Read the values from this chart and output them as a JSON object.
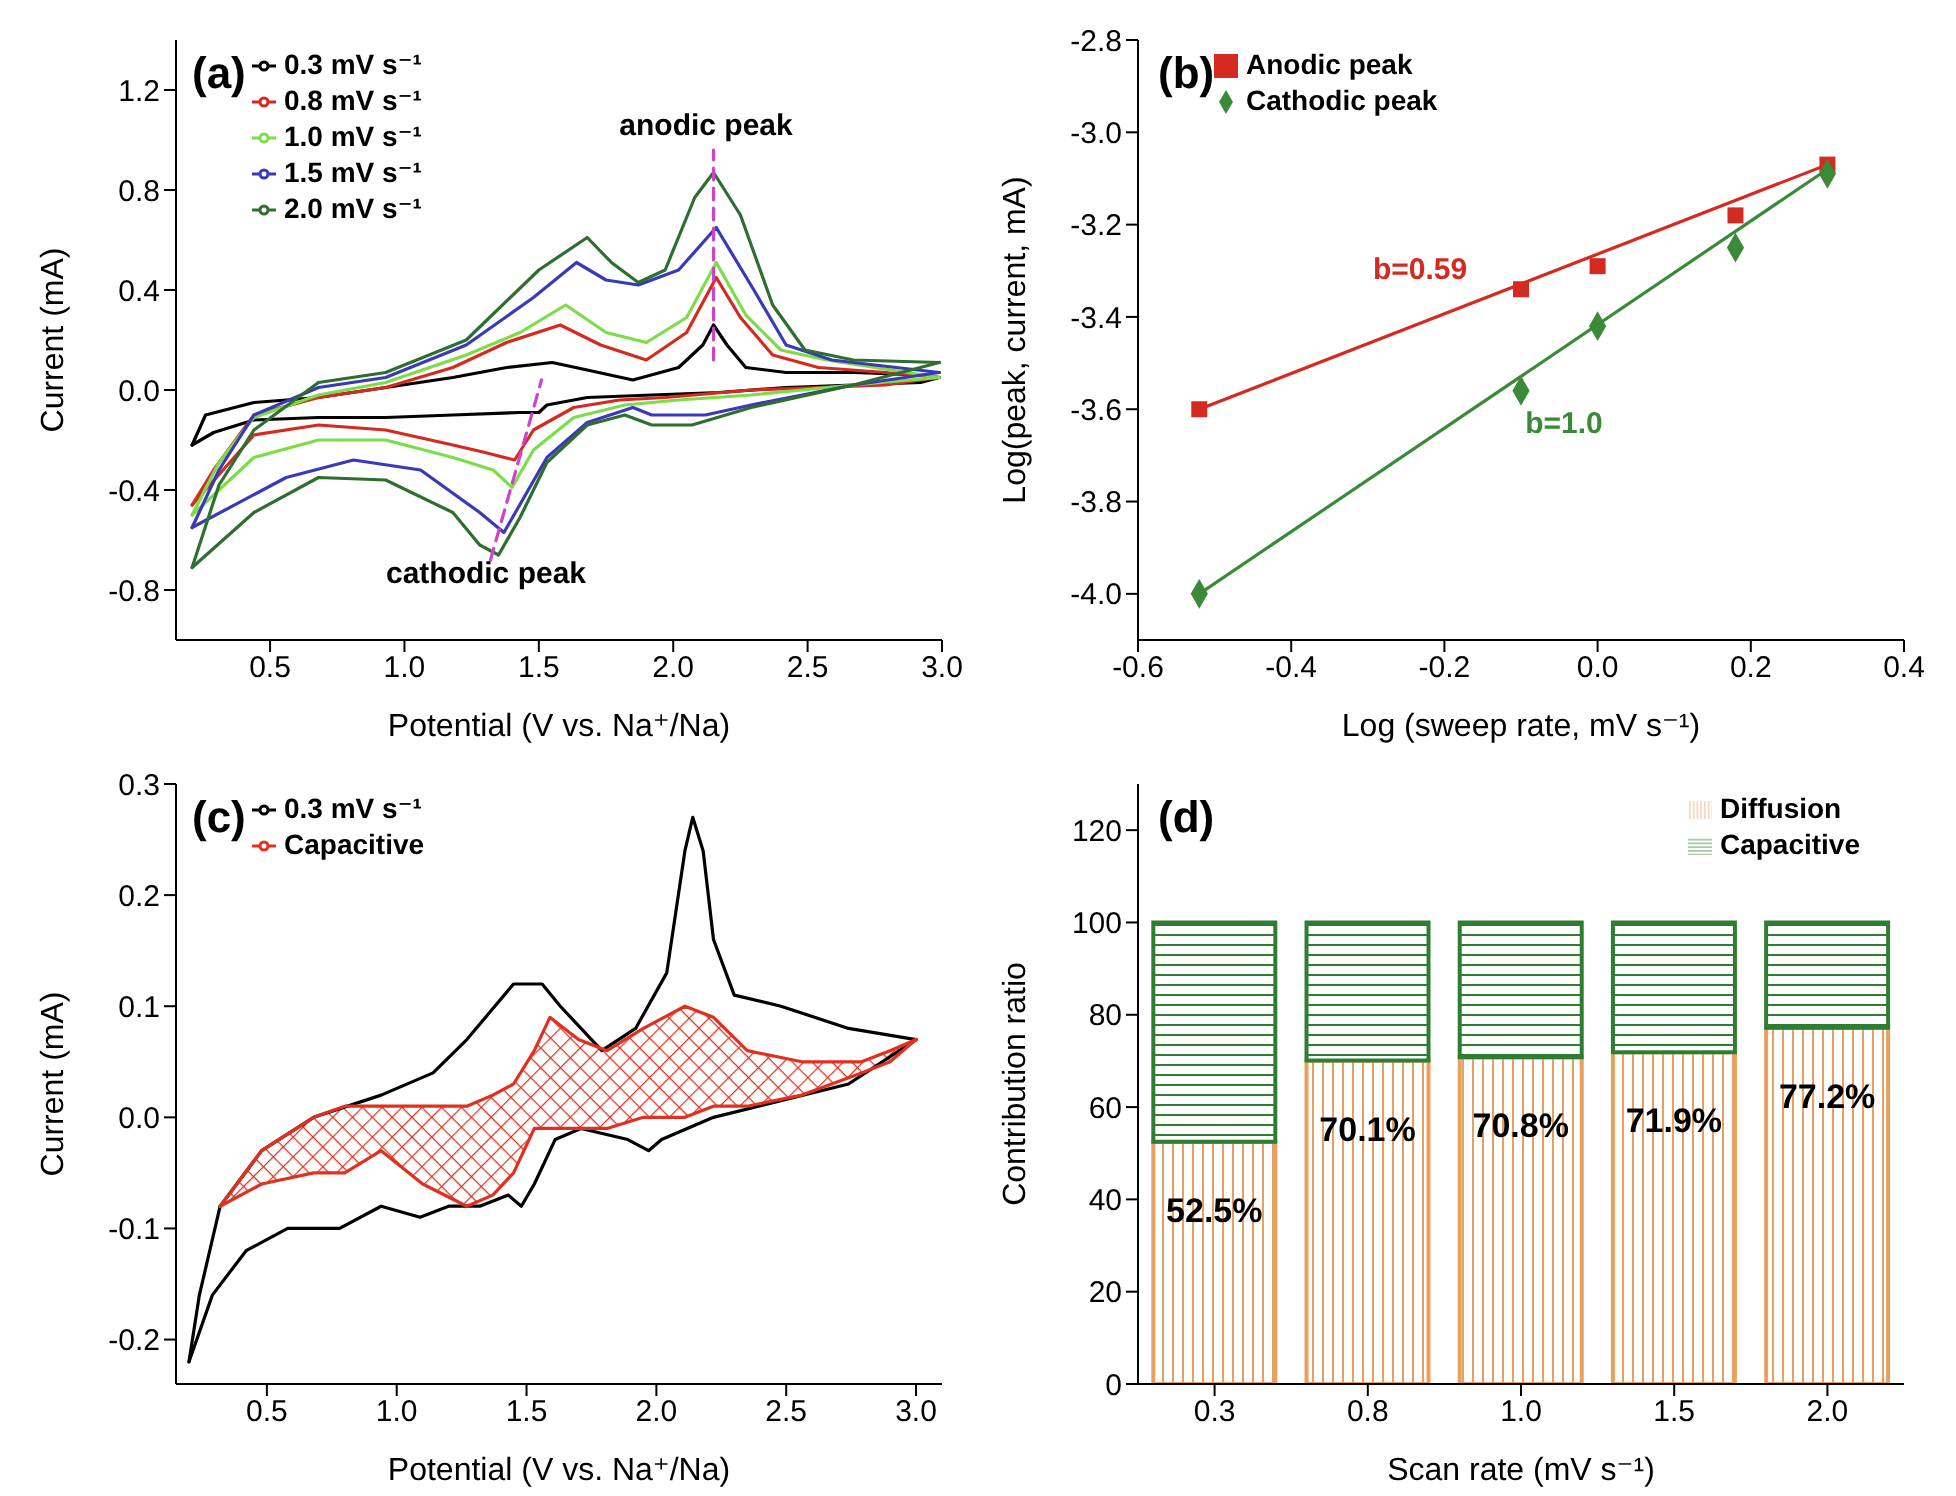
{
  "chart_data": [
    {
      "type": "line",
      "xlabel": "Potential (V vs. Na⁺/Na)",
      "ylabel": "Current (mA)",
      "xlim": [
        0.15,
        3.0
      ],
      "ylim": [
        -1.0,
        1.4
      ],
      "xticks": [
        0.5,
        {
          "value": 1,
          "label": "1.0"
        },
        1.5,
        {
          "value": 2,
          "label": "2.0"
        },
        2.5,
        {
          "value": 3,
          "label": "3.0"
        }
      ],
      "yticks": [
        -0.8,
        -0.4,
        {
          "value": 0,
          "label": "0.0"
        },
        0.4,
        0.8,
        1.2
      ],
      "legend": "top left",
      "annotations": [
        "(a)",
        "anodic peak",
        "cathodic peak"
      ],
      "series": [
        {
          "name": "0.3 mV s⁻¹",
          "color": "#000000",
          "x": [
            0.21,
            0.26,
            0.44,
            0.68,
            0.93,
            1.18,
            1.38,
            1.55,
            1.68,
            1.85,
            2.02,
            2.11,
            2.15,
            2.2,
            2.27,
            2.42,
            2.67,
            2.92,
            2.99
          ],
          "values": [
            -0.22,
            -0.1,
            -0.05,
            -0.03,
            0.01,
            0.05,
            0.09,
            0.11,
            0.08,
            0.04,
            0.09,
            0.18,
            0.26,
            0.18,
            0.09,
            0.07,
            0.07,
            0.06,
            0.05
          ]
        },
        {
          "color": "#000000",
          "x": [
            0.21,
            0.29,
            0.44,
            0.68,
            0.93,
            1.18,
            1.43,
            1.5,
            1.53,
            1.68,
            1.92,
            2.17,
            2.42,
            2.67,
            2.92,
            2.99
          ],
          "values": [
            -0.22,
            -0.17,
            -0.12,
            -0.11,
            -0.11,
            -0.1,
            -0.09,
            -0.09,
            -0.06,
            -0.03,
            -0.02,
            -0.01,
            0.01,
            0.02,
            0.03,
            0.05
          ]
        },
        {
          "name": "0.8 mV s⁻¹",
          "color": "#d42a20",
          "x": [
            0.21,
            0.29,
            0.44,
            0.68,
            0.93,
            1.18,
            1.38,
            1.58,
            1.73,
            1.9,
            2.05,
            2.16,
            2.25,
            2.37,
            2.54,
            2.79,
            2.99
          ],
          "values": [
            -0.46,
            -0.32,
            -0.1,
            -0.03,
            0.01,
            0.09,
            0.19,
            0.26,
            0.18,
            0.12,
            0.23,
            0.45,
            0.29,
            0.14,
            0.09,
            0.07,
            0.05
          ]
        },
        {
          "color": "#d42a20",
          "x": [
            0.21,
            0.44,
            0.68,
            0.93,
            1.18,
            1.3,
            1.41,
            1.48,
            1.63,
            1.8,
            1.97,
            2.29,
            2.54,
            2.79,
            2.99
          ],
          "values": [
            -0.46,
            -0.18,
            -0.14,
            -0.16,
            -0.22,
            -0.25,
            -0.28,
            -0.16,
            -0.07,
            -0.04,
            -0.03,
            0.0,
            0.01,
            0.02,
            0.05
          ]
        },
        {
          "name": "1.0 mV s⁻¹",
          "color": "#7ddc4a",
          "x": [
            0.21,
            0.31,
            0.44,
            0.68,
            0.93,
            1.23,
            1.43,
            1.6,
            1.75,
            1.9,
            2.05,
            2.16,
            2.27,
            2.4,
            2.57,
            2.99
          ],
          "values": [
            -0.5,
            -0.29,
            -0.11,
            -0.02,
            0.03,
            0.14,
            0.23,
            0.34,
            0.23,
            0.19,
            0.29,
            0.51,
            0.3,
            0.16,
            0.12,
            0.05
          ]
        },
        {
          "color": "#7ddc4a",
          "x": [
            0.21,
            0.44,
            0.68,
            0.93,
            1.18,
            1.33,
            1.4,
            1.48,
            1.63,
            1.82,
            2.02,
            2.29,
            2.67,
            2.99
          ],
          "values": [
            -0.5,
            -0.27,
            -0.2,
            -0.2,
            -0.27,
            -0.32,
            -0.39,
            -0.24,
            -0.11,
            -0.06,
            -0.04,
            -0.02,
            0.02,
            0.05
          ]
        },
        {
          "name": "1.5 mV s⁻¹",
          "color": "#3a3ab8",
          "x": [
            0.21,
            0.31,
            0.44,
            0.68,
            0.93,
            1.23,
            1.48,
            1.64,
            1.75,
            1.87,
            2.02,
            2.16,
            2.3,
            2.42,
            2.59,
            2.99
          ],
          "values": [
            -0.55,
            -0.32,
            -0.1,
            0.01,
            0.05,
            0.18,
            0.37,
            0.51,
            0.44,
            0.42,
            0.48,
            0.65,
            0.4,
            0.18,
            0.12,
            0.07
          ]
        },
        {
          "color": "#3a3ab8",
          "x": [
            0.21,
            0.56,
            0.81,
            1.06,
            1.28,
            1.37,
            1.53,
            1.68,
            1.85,
            1.92,
            2.12,
            2.29,
            2.67,
            2.99
          ],
          "values": [
            -0.55,
            -0.35,
            -0.28,
            -0.32,
            -0.49,
            -0.57,
            -0.27,
            -0.13,
            -0.07,
            -0.1,
            -0.1,
            -0.06,
            0.02,
            0.07
          ]
        },
        {
          "name": "2.0 mV s⁻¹",
          "color": "#2e6e2e",
          "x": [
            0.21,
            0.31,
            0.44,
            0.68,
            0.93,
            1.23,
            1.5,
            1.68,
            1.77,
            1.87,
            1.97,
            2.08,
            2.15,
            2.25,
            2.37,
            2.49,
            2.67,
            2.99
          ],
          "values": [
            -0.71,
            -0.38,
            -0.16,
            0.03,
            0.07,
            0.2,
            0.48,
            0.61,
            0.51,
            0.43,
            0.48,
            0.77,
            0.87,
            0.7,
            0.34,
            0.16,
            0.12,
            0.11
          ]
        },
        {
          "color": "#2e6e2e",
          "x": [
            0.21,
            0.44,
            0.68,
            0.93,
            1.18,
            1.28,
            1.35,
            1.43,
            1.53,
            1.68,
            1.82,
            1.92,
            2.07,
            2.29,
            2.67,
            2.99
          ],
          "values": [
            -0.71,
            -0.49,
            -0.35,
            -0.36,
            -0.49,
            -0.62,
            -0.66,
            -0.51,
            -0.29,
            -0.14,
            -0.1,
            -0.14,
            -0.14,
            -0.07,
            0.02,
            0.11
          ]
        },
        {
          "color": "#cc44cc",
          "line_style": "dashed",
          "x": [
            2.15,
            2.15
          ],
          "values": [
            0.12,
            0.96
          ]
        },
        {
          "color": "#cc44cc",
          "line_style": "dashed",
          "x": [
            1.32,
            1.51
          ],
          "values": [
            -0.68,
            0.04
          ]
        }
      ]
    },
    {
      "type": "scatter",
      "xlabel": "Log (sweep rate, mV s⁻¹)",
      "ylabel": "Log(peak, current, mA)",
      "xlim": [
        -0.6,
        0.4
      ],
      "ylim": [
        -4.1,
        -2.8
      ],
      "xticks": [
        -0.6,
        -0.4,
        -0.2,
        {
          "value": 0,
          "label": "0.0"
        },
        0.2,
        0.4
      ],
      "yticks": [
        -2.8,
        {
          "value": -3,
          "label": "-3.0"
        },
        -3.2,
        -3.4,
        -3.6,
        -3.8,
        {
          "value": -4,
          "label": "-4.0"
        }
      ],
      "legend": "top left",
      "annotations": [
        "(b)",
        "b=0.59",
        "b=1.0"
      ],
      "series": [
        {
          "name": "Anodic peak",
          "color": "#d42a20",
          "marker": "square",
          "x": [
            -0.52,
            -0.1,
            0,
            0.18,
            0.3
          ],
          "values": [
            -3.6,
            -3.34,
            -3.29,
            -3.18,
            -3.07
          ]
        },
        {
          "name": "Cathodic peak",
          "color": "#3a8a3a",
          "marker": "diamond",
          "x": [
            -0.52,
            -0.1,
            0,
            0.18,
            0.3
          ],
          "values": [
            -4.0,
            -3.56,
            -3.42,
            -3.25,
            -3.09
          ]
        },
        {
          "type": "line",
          "color": "#d42a20",
          "x": [
            -0.52,
            0.3
          ],
          "values": [
            -3.6,
            -3.07
          ]
        },
        {
          "type": "line",
          "color": "#3a8a3a",
          "x": [
            -0.52,
            0.3
          ],
          "values": [
            -4.0,
            -3.08
          ]
        }
      ]
    },
    {
      "type": "line",
      "xlabel": "Potential (V vs. Na⁺/Na)",
      "ylabel": "Current (mA)",
      "xlim": [
        0.15,
        3.1
      ],
      "ylim": [
        -0.24,
        0.3
      ],
      "xticks": [
        0.5,
        {
          "value": 1,
          "label": "1.0"
        },
        1.5,
        {
          "value": 2,
          "label": "2.0"
        },
        2.5,
        {
          "value": 3,
          "label": "3.0"
        }
      ],
      "yticks": [
        -0.2,
        -0.1,
        {
          "value": 0,
          "label": "0.0"
        },
        0.1,
        0.2,
        0.3
      ],
      "legend": "top left",
      "annotations": [
        "(c)"
      ],
      "series": [
        {
          "name": "0.3 mV s⁻¹",
          "color": "#000000",
          "x": [
            0.2,
            0.24,
            0.32,
            0.48,
            0.68,
            0.94,
            1.14,
            1.27,
            1.45,
            1.56,
            1.63,
            1.79,
            1.92,
            2.04,
            2.11,
            2.14,
            2.18,
            2.22,
            2.3,
            2.48,
            2.74,
            3.0
          ],
          "values": [
            -0.22,
            -0.16,
            -0.08,
            -0.03,
            0.0,
            0.02,
            0.04,
            0.07,
            0.12,
            0.12,
            0.1,
            0.06,
            0.08,
            0.13,
            0.24,
            0.27,
            0.24,
            0.16,
            0.11,
            0.1,
            0.08,
            0.07
          ]
        },
        {
          "color": "#000000",
          "x": [
            0.2,
            0.29,
            0.42,
            0.58,
            0.78,
            0.94,
            1.09,
            1.2,
            1.32,
            1.43,
            1.48,
            1.53,
            1.61,
            1.71,
            1.89,
            1.97,
            2.02,
            2.22,
            2.74,
            3.0
          ],
          "values": [
            -0.22,
            -0.16,
            -0.12,
            -0.1,
            -0.1,
            -0.08,
            -0.09,
            -0.08,
            -0.08,
            -0.07,
            -0.08,
            -0.06,
            -0.02,
            -0.01,
            -0.02,
            -0.03,
            -0.02,
            0.0,
            0.03,
            0.07
          ]
        },
        {
          "name": "Capacitive",
          "type": "line",
          "color": "#e03020",
          "x": [
            0.32,
            0.48,
            0.68,
            0.8,
            0.94,
            1.1,
            1.27,
            1.37,
            1.45,
            1.53,
            1.59,
            1.7,
            1.81,
            1.95,
            2.11,
            2.22,
            2.35,
            2.56,
            2.79,
            2.9,
            3.0
          ],
          "values": [
            -0.08,
            -0.03,
            0.0,
            0.01,
            0.01,
            0.01,
            0.01,
            0.02,
            0.03,
            0.06,
            0.09,
            0.07,
            0.06,
            0.08,
            0.1,
            0.09,
            0.06,
            0.05,
            0.05,
            0.06,
            0.07
          ]
        },
        {
          "type": "line",
          "color": "#e03020",
          "x": [
            0.32,
            0.48,
            0.68,
            0.8,
            0.94,
            1.1,
            1.27,
            1.37,
            1.45,
            1.53,
            1.59,
            1.7,
            1.81,
            1.95,
            2.11,
            2.22,
            2.35,
            2.56,
            2.79,
            2.9,
            3.0
          ],
          "values": [
            -0.08,
            -0.06,
            -0.05,
            -0.05,
            -0.03,
            -0.06,
            -0.08,
            -0.07,
            -0.05,
            -0.01,
            -0.01,
            -0.01,
            -0.01,
            0.0,
            0.0,
            0.01,
            0.01,
            0.02,
            0.04,
            0.05,
            0.07
          ]
        }
      ]
    },
    {
      "type": "bar",
      "stacked": true,
      "xlabel": "Scan rate (mV s⁻¹)",
      "ylabel": "Contribution ratio",
      "categories": [
        "0.3",
        "0.8",
        "1.0",
        "1.5",
        "2.0"
      ],
      "ylim": [
        0,
        130
      ],
      "yticks": [
        0,
        20,
        40,
        60,
        80,
        100,
        120
      ],
      "legend": "top right",
      "annotations": [
        "(d)"
      ],
      "series": [
        {
          "name": "Diffusion",
          "color": "#e8a060",
          "values": [
            52.5,
            70.1,
            70.8,
            71.9,
            77.2
          ],
          "value_labels": [
            "52.5%",
            "70.1%",
            "70.8%",
            "71.9%",
            "77.2%"
          ]
        },
        {
          "name": "Capacitive",
          "color": "#2e7d32",
          "values": [
            47.5,
            29.9,
            29.2,
            28.1,
            22.8
          ]
        }
      ]
    }
  ]
}
